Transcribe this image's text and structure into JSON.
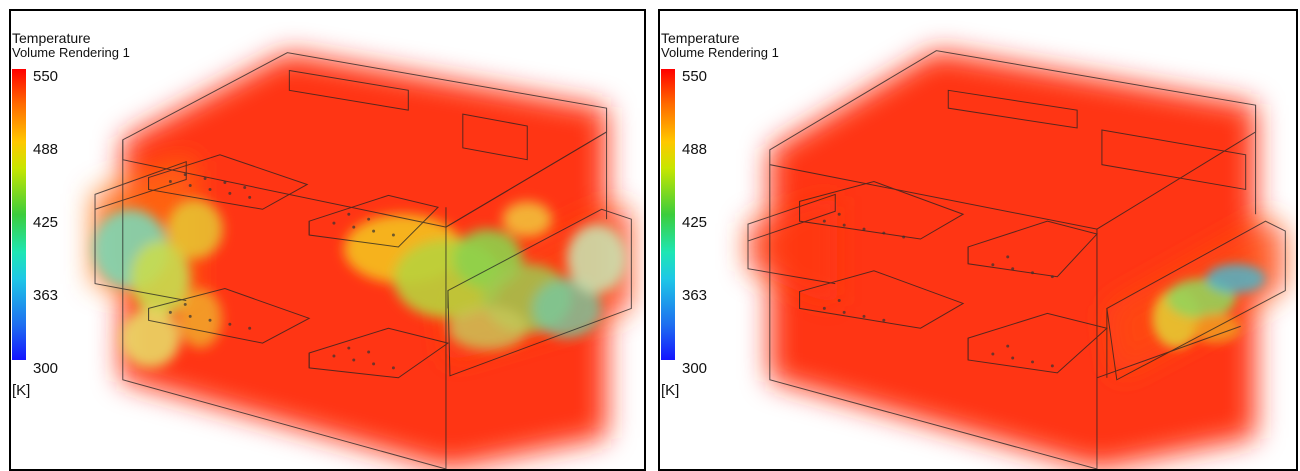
{
  "panels": [
    {
      "legend": {
        "title": "Temperature",
        "subtitle": "Volume Rendering 1",
        "ticks": [
          "550",
          "488",
          "425",
          "363",
          "300"
        ],
        "unit": "[K]"
      }
    },
    {
      "legend": {
        "title": "Temperature",
        "subtitle": "Volume Rendering 1",
        "ticks": [
          "550",
          "488",
          "425",
          "363",
          "300"
        ],
        "unit": "[K]"
      }
    }
  ],
  "colors": {
    "hot": "#ff1a00",
    "warm": "#ffb000",
    "mid": "#7fd64a",
    "cool": "#3cd2c8",
    "cold": "#1414ff"
  }
}
